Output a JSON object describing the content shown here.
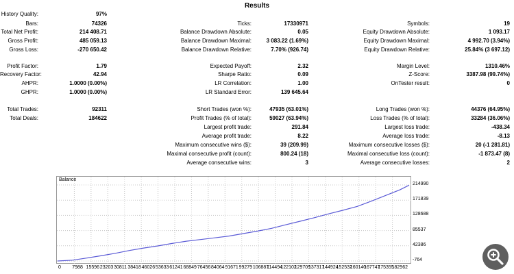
{
  "header": {
    "title": "Results"
  },
  "rows": [
    {
      "y": 16,
      "c1": [
        "History Quality:",
        "97%"
      ],
      "c2": null,
      "c3": null
    },
    {
      "y": 30,
      "c1": [
        "Bars:",
        "74326"
      ],
      "c2": [
        "Ticks:",
        "17330971"
      ],
      "c3": [
        "Symbols:",
        "19"
      ]
    },
    {
      "y": 42,
      "c1": [
        "Total Net Profit:",
        "214 408.71"
      ],
      "c2": [
        "Balance Drawdown Absolute:",
        "0.05"
      ],
      "c3": [
        "Equity Drawdown Absolute:",
        "1 093.17"
      ]
    },
    {
      "y": 55,
      "c1": [
        "Gross Profit:",
        "485 059.13"
      ],
      "c2": [
        "Balance Drawdown Maximal:",
        "3 083.22 (1.69%)"
      ],
      "c3": [
        "Equity Drawdown Maximal:",
        "4 992.70 (3.94%)"
      ]
    },
    {
      "y": 68,
      "c1": [
        "Gross Loss:",
        "-270 650.42"
      ],
      "c2": [
        "Balance Drawdown Relative:",
        "7.70% (926.74)"
      ],
      "c3": [
        "Equity Drawdown Relative:",
        "25.84% (3 697.12)"
      ]
    },
    {
      "y": 92,
      "c1": [
        "Profit Factor:",
        "1.79"
      ],
      "c2": [
        "Expected Payoff:",
        "2.32"
      ],
      "c3": [
        "Margin Level:",
        "1310.46%"
      ]
    },
    {
      "y": 104,
      "c1": [
        "Recovery Factor:",
        "42.94"
      ],
      "c2": [
        "Sharpe Ratio:",
        "0.09"
      ],
      "c3": [
        "Z-Score:",
        "3387.98 (99.74%)"
      ]
    },
    {
      "y": 117,
      "c1": [
        "AHPR:",
        "1.0000 (0.00%)"
      ],
      "c2": [
        "LR Correlation:",
        "1.00"
      ],
      "c3": [
        "OnTester result:",
        "0"
      ]
    },
    {
      "y": 130,
      "c1": [
        "GHPR:",
        "1.0000 (0.00%)"
      ],
      "c2": [
        "LR Standard Error:",
        "139 645.64"
      ],
      "c3": null
    },
    {
      "y": 155,
      "c1": [
        "Total Trades:",
        "92311"
      ],
      "c2": [
        "Short Trades (won %):",
        "47935 (63.01%)"
      ],
      "c3": [
        "Long Trades (won %):",
        "44376 (64.95%)"
      ]
    },
    {
      "y": 168,
      "c1": [
        "Total Deals:",
        "184622"
      ],
      "c2": [
        "Profit Trades (% of total):",
        "59027 (63.94%)"
      ],
      "c3": [
        "Loss Trades (% of total):",
        "33284 (36.06%)"
      ]
    },
    {
      "y": 181,
      "c1": null,
      "c2": [
        "Largest profit trade:",
        "291.84"
      ],
      "c3": [
        "Largest loss trade:",
        "-438.34"
      ]
    },
    {
      "y": 194,
      "c1": null,
      "c2": [
        "Average profit trade:",
        "8.22"
      ],
      "c3": [
        "Average loss trade:",
        "-8.13"
      ]
    },
    {
      "y": 207,
      "c1": null,
      "c2": [
        "Maximum consecutive wins ($):",
        "39 (209.99)"
      ],
      "c3": [
        "Maximum consecutive losses ($):",
        "20 (-1 281.81)"
      ]
    },
    {
      "y": 220,
      "c1": null,
      "c2": [
        "Maximal consecutive profit (count):",
        "800.24 (18)"
      ],
      "c3": [
        "Maximal consecutive loss (count):",
        "-1 873.47 (8)"
      ]
    },
    {
      "y": 233,
      "c1": null,
      "c2": [
        "Average consecutive wins:",
        "3"
      ],
      "c3": [
        "Average consecutive losses:",
        "2"
      ]
    }
  ],
  "chart_data": {
    "type": "line",
    "title": "Balance",
    "series": [
      {
        "name": "Balance",
        "color": "#5a5ad6",
        "x": [
          0,
          7988,
          15596,
          23203,
          30811,
          38418,
          46026,
          53633,
          61241,
          68849,
          76456,
          84064,
          91671,
          99279,
          106887,
          114494,
          122102,
          129709,
          137317,
          144924,
          152532,
          160140,
          167747,
          175355,
          182962,
          188000
        ],
        "y": [
          -764,
          1500,
          7500,
          14000,
          21000,
          29000,
          36000,
          42000,
          49000,
          55500,
          60000,
          65000,
          70000,
          77000,
          84000,
          92000,
          102000,
          112000,
          122000,
          133000,
          143000,
          154000,
          169000,
          185000,
          201000,
          214408
        ]
      }
    ],
    "yticks": [
      "214990",
      "171839",
      "128688",
      "85537",
      "42386",
      "-764"
    ],
    "xticks": [
      "0",
      "7988",
      "15596",
      "23203",
      "30811",
      "38418",
      "46026",
      "53633",
      "61241",
      "68849",
      "76456",
      "84064",
      "91671",
      "99279",
      "106887",
      "114494",
      "122102",
      "129709",
      "137317",
      "144924",
      "152532",
      "160140",
      "167747",
      "175355",
      "182962"
    ],
    "ylim": [
      -764,
      214990
    ],
    "xlim": [
      0,
      188000
    ],
    "grid": true
  },
  "icons": {
    "zoom": "zoom-in-magnifier-icon"
  }
}
